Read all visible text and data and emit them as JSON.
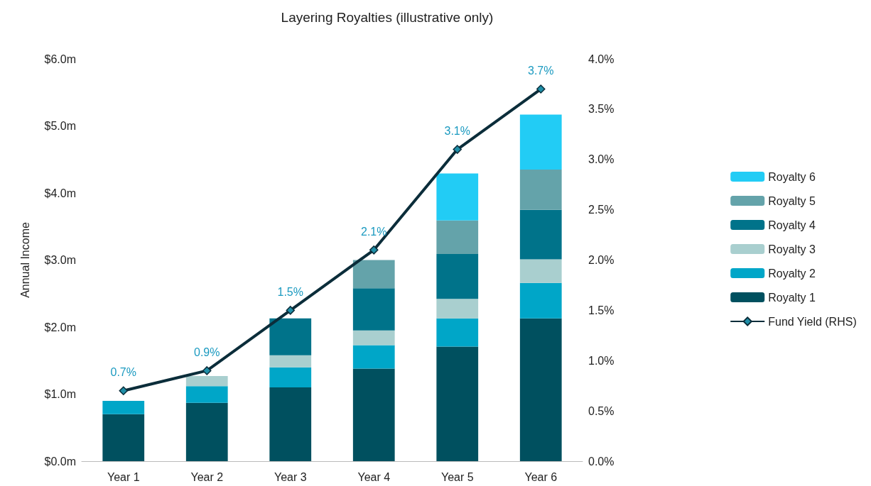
{
  "chart_data": {
    "type": "bar",
    "title": "Layering Royalties (illustrative only)",
    "ylabel": "Annual Income",
    "categories": [
      "Year 1",
      "Year 2",
      "Year 3",
      "Year 4",
      "Year 5",
      "Year 6"
    ],
    "stacked": true,
    "series": [
      {
        "name": "Royalty 1",
        "color": "#00505f",
        "values": [
          0.7,
          0.87,
          1.1,
          1.38,
          1.71,
          2.13
        ]
      },
      {
        "name": "Royalty 2",
        "color": "#00a6c8",
        "values": [
          0.2,
          0.25,
          0.3,
          0.35,
          0.42,
          0.53
        ]
      },
      {
        "name": "Royalty 3",
        "color": "#a9cfcf",
        "values": [
          null,
          0.15,
          0.18,
          0.22,
          0.29,
          0.35
        ]
      },
      {
        "name": "Royalty 4",
        "color": "#00738a",
        "values": [
          null,
          null,
          0.55,
          0.63,
          0.67,
          0.74
        ]
      },
      {
        "name": "Royalty 5",
        "color": "#64a3aa",
        "values": [
          null,
          null,
          null,
          0.42,
          0.5,
          0.6
        ]
      },
      {
        "name": "Royalty 6",
        "color": "#22ccf5",
        "values": [
          null,
          null,
          null,
          null,
          0.7,
          0.82
        ]
      },
      {
        "name": "Fund Yield (RHS)",
        "type": "line",
        "axis": "y2",
        "color": "#0b2d3a",
        "marker": "diamond",
        "values": [
          0.7,
          0.9,
          1.5,
          2.1,
          3.1,
          3.7
        ],
        "value_labels": [
          "0.7%",
          "0.9%",
          "1.5%",
          "2.1%",
          "3.1%",
          "3.7%"
        ]
      }
    ],
    "ylim": [
      0,
      6
    ],
    "yticks": [
      {
        "value": 0,
        "label": "$0.0m"
      },
      {
        "value": 1,
        "label": "$1.0m"
      },
      {
        "value": 2,
        "label": "$2.0m"
      },
      {
        "value": 3,
        "label": "$3.0m"
      },
      {
        "value": 4,
        "label": "$4.0m"
      },
      {
        "value": 5,
        "label": "$5.0m"
      },
      {
        "value": 6,
        "label": "$6.0m"
      }
    ],
    "y2lim": [
      0,
      4
    ],
    "y2ticks": [
      {
        "value": 0,
        "label": "0.0%"
      },
      {
        "value": 0.5,
        "label": "0.5%"
      },
      {
        "value": 1,
        "label": "1.0%"
      },
      {
        "value": 1.5,
        "label": "1.5%"
      },
      {
        "value": 2,
        "label": "2.0%"
      },
      {
        "value": 2.5,
        "label": "2.5%"
      },
      {
        "value": 3,
        "label": "3.0%"
      },
      {
        "value": 3.5,
        "label": "3.5%"
      },
      {
        "value": 4,
        "label": "4.0%"
      }
    ],
    "grid": false,
    "legend": "right"
  }
}
